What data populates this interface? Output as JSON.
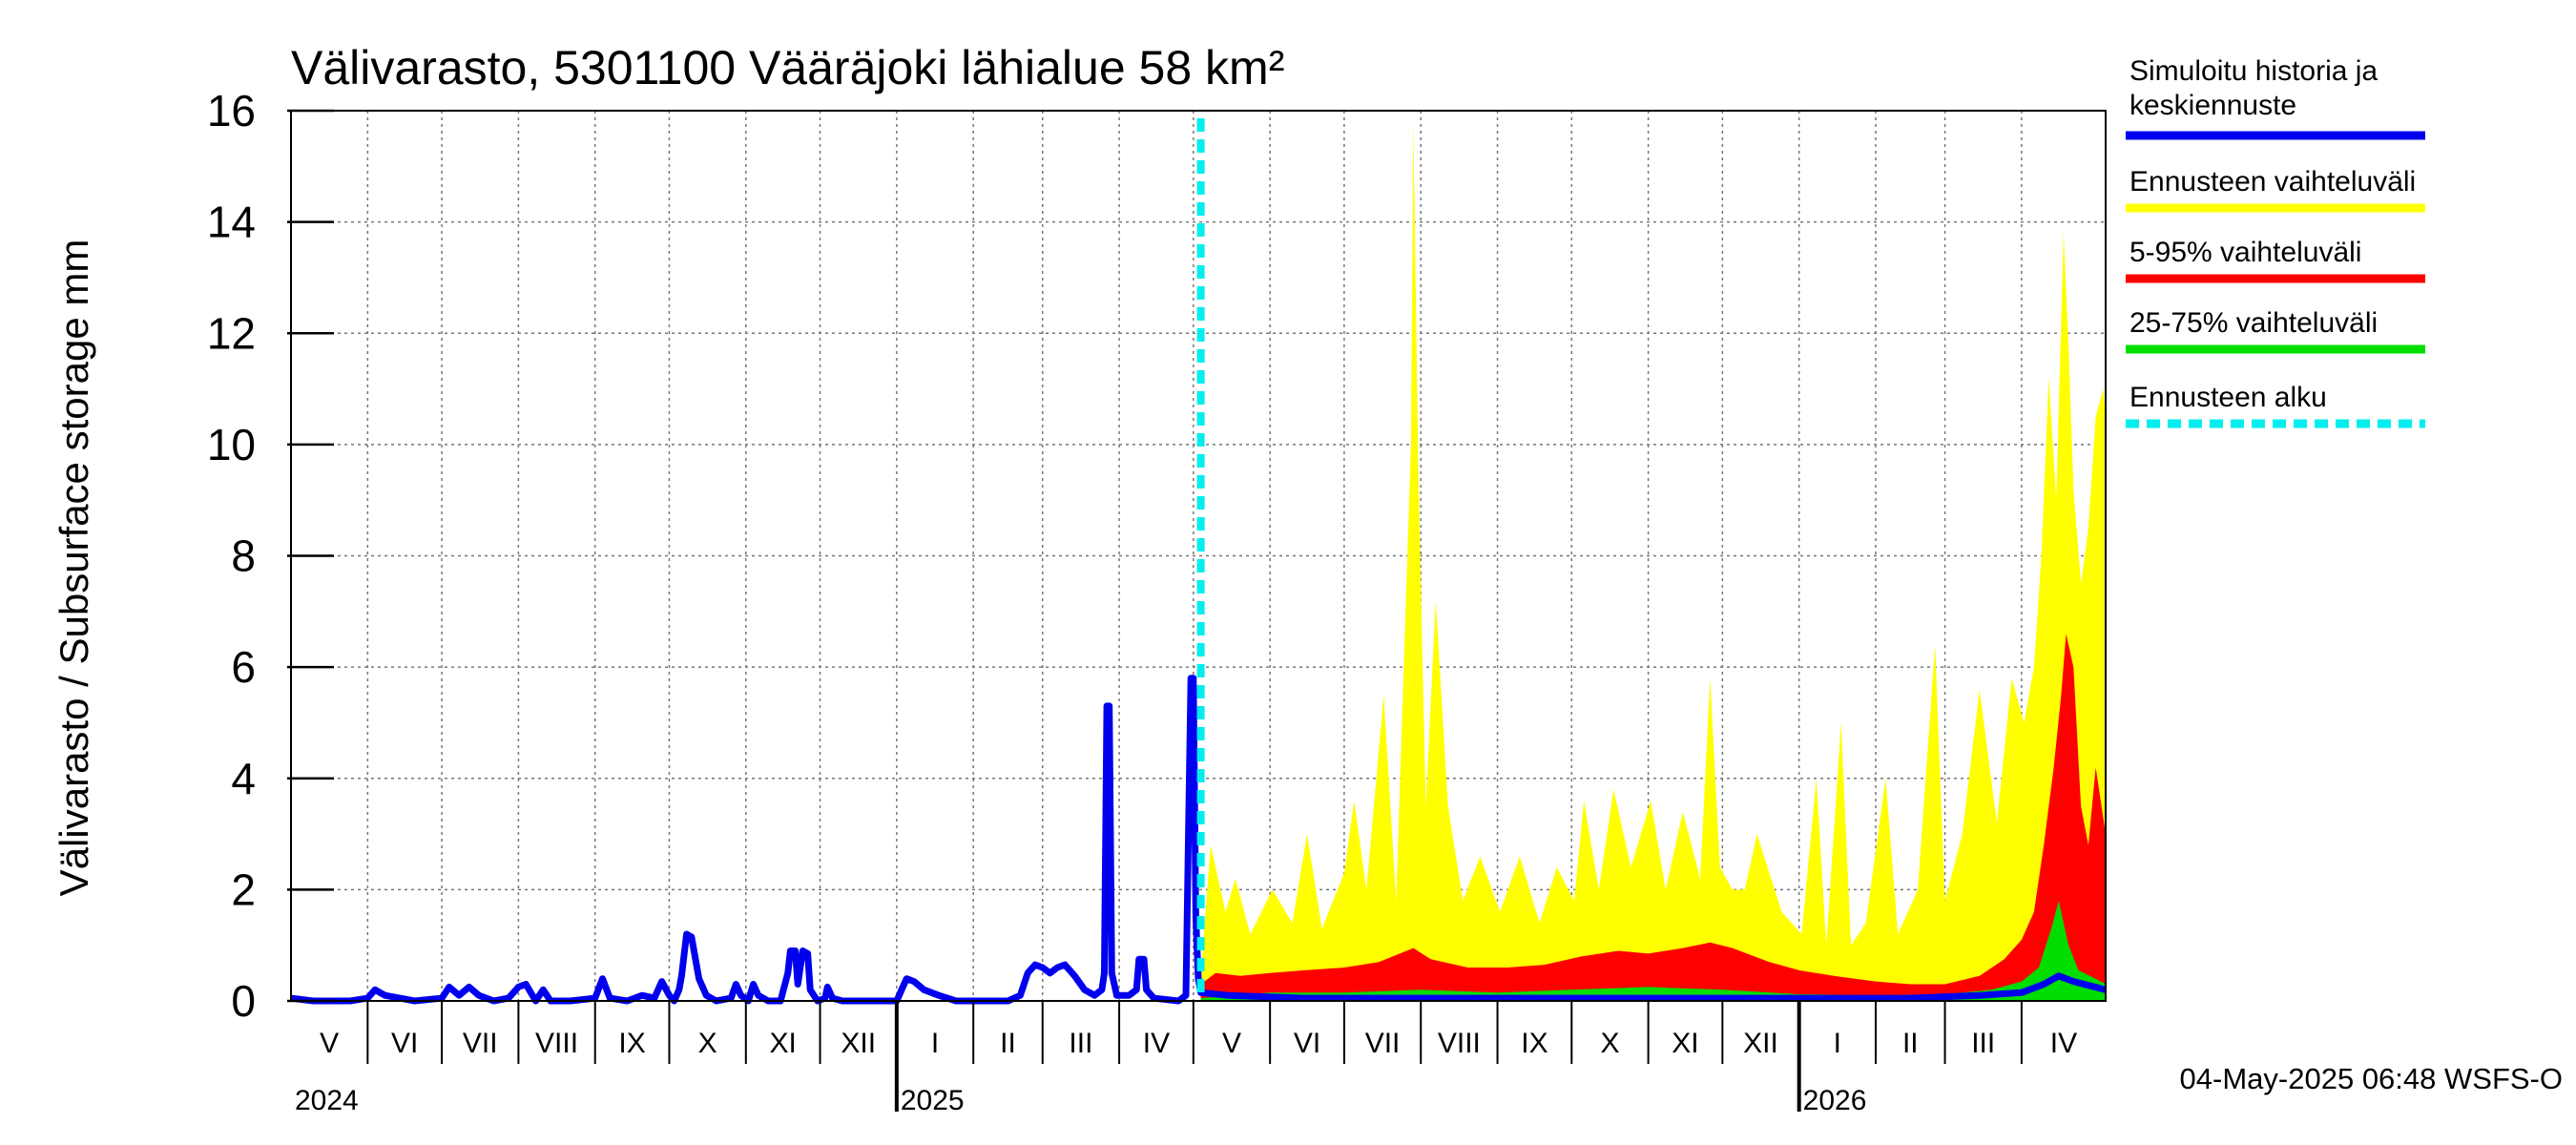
{
  "chart_data": {
    "type": "area",
    "title": "Välivarasto, 5301100 Vääräjoki lähialue 58 km²",
    "ylabel": "Välivarasto / Subsurface storage  mm",
    "ylim": [
      0,
      16
    ],
    "yticks": [
      "0",
      "2",
      "4",
      "6",
      "8",
      "10",
      "12",
      "14",
      "16"
    ],
    "xlim": [
      "2024-05-01",
      "2026-05-05"
    ],
    "grid": true,
    "legend_position": "right",
    "timestamp": "04-May-2025 06:48 WSFS-O",
    "forecast_start": "2025-05-04",
    "months": [
      {
        "label": "V",
        "start": "2024-05-01"
      },
      {
        "label": "VI",
        "start": "2024-06-01"
      },
      {
        "label": "VII",
        "start": "2024-07-01"
      },
      {
        "label": "VIII",
        "start": "2024-08-01"
      },
      {
        "label": "IX",
        "start": "2024-09-01"
      },
      {
        "label": "X",
        "start": "2024-10-01"
      },
      {
        "label": "XI",
        "start": "2024-11-01"
      },
      {
        "label": "XII",
        "start": "2024-12-01"
      },
      {
        "label": "I",
        "start": "2025-01-01"
      },
      {
        "label": "II",
        "start": "2025-02-01"
      },
      {
        "label": "III",
        "start": "2025-03-01"
      },
      {
        "label": "IV",
        "start": "2025-04-01"
      },
      {
        "label": "V",
        "start": "2025-05-01"
      },
      {
        "label": "VI",
        "start": "2025-06-01"
      },
      {
        "label": "VII",
        "start": "2025-07-01"
      },
      {
        "label": "VIII",
        "start": "2025-08-01"
      },
      {
        "label": "IX",
        "start": "2025-09-01"
      },
      {
        "label": "X",
        "start": "2025-10-01"
      },
      {
        "label": "XI",
        "start": "2025-11-01"
      },
      {
        "label": "XII",
        "start": "2025-12-01"
      },
      {
        "label": "I",
        "start": "2026-01-01"
      },
      {
        "label": "II",
        "start": "2026-02-01"
      },
      {
        "label": "III",
        "start": "2026-03-01"
      },
      {
        "label": "IV",
        "start": "2026-04-01"
      }
    ],
    "years": [
      {
        "label": "2024",
        "at": "2024-05-01"
      },
      {
        "label": "2025",
        "at": "2025-01-01"
      },
      {
        "label": "2026",
        "at": "2026-01-01"
      }
    ],
    "legend": [
      {
        "label": "Simuloitu historia ja keskiennuste",
        "color": "#0000ee",
        "style": "solid"
      },
      {
        "label": "Ennusteen vaihteluväli",
        "color": "#ffff00",
        "style": "solid"
      },
      {
        "label": "5-95% vaihteluväli",
        "color": "#ff0000",
        "style": "solid"
      },
      {
        "label": "25-75% vaihteluväli",
        "color": "#00dd00",
        "style": "solid"
      },
      {
        "label": "Ennusteen alku",
        "color": "#00eeee",
        "style": "dashed"
      }
    ],
    "series": [
      {
        "name": "Simuloitu historia ja keskiennuste",
        "color": "#0000ee",
        "points": [
          [
            "2024-05-01",
            0.05
          ],
          [
            "2024-05-10",
            0.0
          ],
          [
            "2024-05-25",
            0.0
          ],
          [
            "2024-06-01",
            0.05
          ],
          [
            "2024-06-04",
            0.2
          ],
          [
            "2024-06-08",
            0.1
          ],
          [
            "2024-06-14",
            0.05
          ],
          [
            "2024-06-20",
            0.0
          ],
          [
            "2024-07-01",
            0.05
          ],
          [
            "2024-07-04",
            0.25
          ],
          [
            "2024-07-08",
            0.1
          ],
          [
            "2024-07-12",
            0.25
          ],
          [
            "2024-07-16",
            0.1
          ],
          [
            "2024-07-22",
            0.0
          ],
          [
            "2024-07-28",
            0.05
          ],
          [
            "2024-08-01",
            0.25
          ],
          [
            "2024-08-04",
            0.3
          ],
          [
            "2024-08-08",
            0.0
          ],
          [
            "2024-08-11",
            0.2
          ],
          [
            "2024-08-14",
            0.0
          ],
          [
            "2024-08-22",
            0.0
          ],
          [
            "2024-09-01",
            0.05
          ],
          [
            "2024-09-04",
            0.4
          ],
          [
            "2024-09-07",
            0.05
          ],
          [
            "2024-09-14",
            0.0
          ],
          [
            "2024-09-20",
            0.1
          ],
          [
            "2024-09-25",
            0.05
          ],
          [
            "2024-09-28",
            0.35
          ],
          [
            "2024-10-01",
            0.1
          ],
          [
            "2024-10-03",
            0.0
          ],
          [
            "2024-10-05",
            0.2
          ],
          [
            "2024-10-06",
            0.45
          ],
          [
            "2024-10-08",
            1.2
          ],
          [
            "2024-10-10",
            1.15
          ],
          [
            "2024-10-13",
            0.4
          ],
          [
            "2024-10-16",
            0.1
          ],
          [
            "2024-10-20",
            0.0
          ],
          [
            "2024-10-26",
            0.05
          ],
          [
            "2024-10-28",
            0.3
          ],
          [
            "2024-10-30",
            0.1
          ],
          [
            "2024-11-02",
            0.0
          ],
          [
            "2024-11-04",
            0.3
          ],
          [
            "2024-11-06",
            0.1
          ],
          [
            "2024-11-10",
            0.0
          ],
          [
            "2024-11-15",
            0.0
          ],
          [
            "2024-11-18",
            0.5
          ],
          [
            "2024-11-19",
            0.9
          ],
          [
            "2024-11-21",
            0.9
          ],
          [
            "2024-11-22",
            0.3
          ],
          [
            "2024-11-24",
            0.9
          ],
          [
            "2024-11-26",
            0.85
          ],
          [
            "2024-11-27",
            0.2
          ],
          [
            "2024-11-30",
            0.0
          ],
          [
            "2024-12-03",
            0.05
          ],
          [
            "2024-12-04",
            0.25
          ],
          [
            "2024-12-06",
            0.05
          ],
          [
            "2024-12-10",
            0.0
          ],
          [
            "2024-12-25",
            0.0
          ],
          [
            "2025-01-01",
            0.0
          ],
          [
            "2025-01-03",
            0.2
          ],
          [
            "2025-01-05",
            0.4
          ],
          [
            "2025-01-08",
            0.35
          ],
          [
            "2025-01-12",
            0.2
          ],
          [
            "2025-01-18",
            0.1
          ],
          [
            "2025-01-25",
            0.0
          ],
          [
            "2025-02-05",
            0.0
          ],
          [
            "2025-02-15",
            0.0
          ],
          [
            "2025-02-20",
            0.1
          ],
          [
            "2025-02-23",
            0.5
          ],
          [
            "2025-02-26",
            0.65
          ],
          [
            "2025-03-01",
            0.6
          ],
          [
            "2025-03-04",
            0.5
          ],
          [
            "2025-03-07",
            0.6
          ],
          [
            "2025-03-10",
            0.65
          ],
          [
            "2025-03-14",
            0.45
          ],
          [
            "2025-03-18",
            0.2
          ],
          [
            "2025-03-22",
            0.1
          ],
          [
            "2025-03-25",
            0.2
          ],
          [
            "2025-03-26",
            0.5
          ],
          [
            "2025-03-27",
            5.3
          ],
          [
            "2025-03-28",
            5.3
          ],
          [
            "2025-03-29",
            0.5
          ],
          [
            "2025-03-31",
            0.1
          ],
          [
            "2025-04-05",
            0.1
          ],
          [
            "2025-04-08",
            0.2
          ],
          [
            "2025-04-09",
            0.75
          ],
          [
            "2025-04-11",
            0.75
          ],
          [
            "2025-04-12",
            0.2
          ],
          [
            "2025-04-15",
            0.05
          ],
          [
            "2025-04-25",
            0.0
          ],
          [
            "2025-04-28",
            0.1
          ],
          [
            "2025-04-30",
            5.8
          ],
          [
            "2025-05-01",
            5.8
          ],
          [
            "2025-05-02",
            1.5
          ],
          [
            "2025-05-03",
            0.4
          ],
          [
            "2025-05-04",
            0.15
          ],
          [
            "2025-05-15",
            0.1
          ],
          [
            "2025-06-15",
            0.05
          ],
          [
            "2025-08-01",
            0.05
          ],
          [
            "2025-10-01",
            0.05
          ],
          [
            "2025-12-01",
            0.05
          ],
          [
            "2026-01-15",
            0.05
          ],
          [
            "2026-02-15",
            0.05
          ],
          [
            "2026-03-15",
            0.1
          ],
          [
            "2026-04-01",
            0.15
          ],
          [
            "2026-04-10",
            0.3
          ],
          [
            "2026-04-16",
            0.45
          ],
          [
            "2026-04-22",
            0.35
          ],
          [
            "2026-05-05",
            0.2
          ]
        ]
      },
      {
        "name": "Ennusteen vaihteluväli",
        "color": "#ffff00",
        "points": [
          [
            "2025-05-04",
            0.5
          ],
          [
            "2025-05-08",
            2.8
          ],
          [
            "2025-05-14",
            1.6
          ],
          [
            "2025-05-18",
            2.2
          ],
          [
            "2025-05-24",
            1.2
          ],
          [
            "2025-06-02",
            2.0
          ],
          [
            "2025-06-10",
            1.4
          ],
          [
            "2025-06-16",
            3.0
          ],
          [
            "2025-06-22",
            1.3
          ],
          [
            "2025-07-01",
            2.3
          ],
          [
            "2025-07-05",
            3.6
          ],
          [
            "2025-07-10",
            2.0
          ],
          [
            "2025-07-17",
            5.5
          ],
          [
            "2025-07-22",
            1.8
          ],
          [
            "2025-07-28",
            10.0
          ],
          [
            "2025-07-29",
            15.8
          ],
          [
            "2025-07-31",
            9.5
          ],
          [
            "2025-08-03",
            3.5
          ],
          [
            "2025-08-07",
            7.2
          ],
          [
            "2025-08-12",
            3.5
          ],
          [
            "2025-08-18",
            1.8
          ],
          [
            "2025-08-25",
            2.6
          ],
          [
            "2025-09-02",
            1.6
          ],
          [
            "2025-09-10",
            2.6
          ],
          [
            "2025-09-18",
            1.4
          ],
          [
            "2025-09-25",
            2.4
          ],
          [
            "2025-10-02",
            1.8
          ],
          [
            "2025-10-06",
            3.6
          ],
          [
            "2025-10-12",
            2.0
          ],
          [
            "2025-10-18",
            3.8
          ],
          [
            "2025-10-25",
            2.4
          ],
          [
            "2025-11-02",
            3.6
          ],
          [
            "2025-11-08",
            2.0
          ],
          [
            "2025-11-15",
            3.4
          ],
          [
            "2025-11-22",
            2.2
          ],
          [
            "2025-11-26",
            5.8
          ],
          [
            "2025-11-30",
            2.4
          ],
          [
            "2025-12-05",
            2.0
          ],
          [
            "2025-12-10",
            2.0
          ],
          [
            "2025-12-15",
            3.0
          ],
          [
            "2025-12-25",
            1.6
          ],
          [
            "2026-01-02",
            1.2
          ],
          [
            "2026-01-08",
            4.0
          ],
          [
            "2026-01-12",
            1.0
          ],
          [
            "2026-01-18",
            5.0
          ],
          [
            "2026-01-22",
            1.0
          ],
          [
            "2026-01-28",
            1.4
          ],
          [
            "2026-02-05",
            4.0
          ],
          [
            "2026-02-10",
            1.2
          ],
          [
            "2026-02-18",
            2.0
          ],
          [
            "2026-02-25",
            6.4
          ],
          [
            "2026-03-01",
            1.8
          ],
          [
            "2026-03-08",
            3.0
          ],
          [
            "2026-03-15",
            5.6
          ],
          [
            "2026-03-22",
            3.2
          ],
          [
            "2026-03-28",
            5.8
          ],
          [
            "2026-04-02",
            5.0
          ],
          [
            "2026-04-06",
            6.0
          ],
          [
            "2026-04-09",
            8.0
          ],
          [
            "2026-04-12",
            11.2
          ],
          [
            "2026-04-15",
            9.0
          ],
          [
            "2026-04-18",
            13.8
          ],
          [
            "2026-04-20",
            11.8
          ],
          [
            "2026-04-22",
            9.2
          ],
          [
            "2026-04-25",
            7.5
          ],
          [
            "2026-04-28",
            8.5
          ],
          [
            "2026-05-01",
            10.5
          ],
          [
            "2026-05-04",
            11.0
          ],
          [
            "2026-05-05",
            10.5
          ]
        ]
      },
      {
        "name": "5-95% vaihteluväli",
        "color": "#ff0000",
        "points": [
          [
            "2025-05-04",
            0.3
          ],
          [
            "2025-05-10",
            0.5
          ],
          [
            "2025-05-20",
            0.45
          ],
          [
            "2025-06-01",
            0.5
          ],
          [
            "2025-06-15",
            0.55
          ],
          [
            "2025-07-01",
            0.6
          ],
          [
            "2025-07-15",
            0.7
          ],
          [
            "2025-07-29",
            0.95
          ],
          [
            "2025-08-05",
            0.75
          ],
          [
            "2025-08-20",
            0.6
          ],
          [
            "2025-09-05",
            0.6
          ],
          [
            "2025-09-20",
            0.65
          ],
          [
            "2025-10-05",
            0.8
          ],
          [
            "2025-10-20",
            0.9
          ],
          [
            "2025-11-01",
            0.85
          ],
          [
            "2025-11-15",
            0.95
          ],
          [
            "2025-11-26",
            1.05
          ],
          [
            "2025-12-05",
            0.95
          ],
          [
            "2025-12-20",
            0.7
          ],
          [
            "2026-01-01",
            0.55
          ],
          [
            "2026-01-15",
            0.45
          ],
          [
            "2026-02-01",
            0.35
          ],
          [
            "2026-02-15",
            0.3
          ],
          [
            "2026-03-01",
            0.3
          ],
          [
            "2026-03-15",
            0.45
          ],
          [
            "2026-03-25",
            0.75
          ],
          [
            "2026-04-01",
            1.1
          ],
          [
            "2026-04-06",
            1.6
          ],
          [
            "2026-04-10",
            2.8
          ],
          [
            "2026-04-14",
            4.2
          ],
          [
            "2026-04-17",
            5.5
          ],
          [
            "2026-04-19",
            6.6
          ],
          [
            "2026-04-22",
            6.0
          ],
          [
            "2026-04-25",
            3.5
          ],
          [
            "2026-04-28",
            2.8
          ],
          [
            "2026-05-01",
            4.2
          ],
          [
            "2026-05-05",
            3.0
          ]
        ]
      },
      {
        "name": "25-75% vaihteluväli",
        "color": "#00dd00",
        "points": [
          [
            "2025-05-04",
            0.05
          ],
          [
            "2025-06-01",
            0.15
          ],
          [
            "2025-07-01",
            0.15
          ],
          [
            "2025-08-01",
            0.2
          ],
          [
            "2025-09-01",
            0.15
          ],
          [
            "2025-10-01",
            0.2
          ],
          [
            "2025-11-01",
            0.25
          ],
          [
            "2025-12-01",
            0.2
          ],
          [
            "2026-01-01",
            0.12
          ],
          [
            "2026-02-01",
            0.1
          ],
          [
            "2026-03-01",
            0.12
          ],
          [
            "2026-03-20",
            0.2
          ],
          [
            "2026-04-01",
            0.35
          ],
          [
            "2026-04-08",
            0.6
          ],
          [
            "2026-04-13",
            1.3
          ],
          [
            "2026-04-16",
            1.8
          ],
          [
            "2026-04-20",
            1.0
          ],
          [
            "2026-04-24",
            0.55
          ],
          [
            "2026-05-01",
            0.4
          ],
          [
            "2026-05-05",
            0.3
          ]
        ]
      }
    ]
  }
}
